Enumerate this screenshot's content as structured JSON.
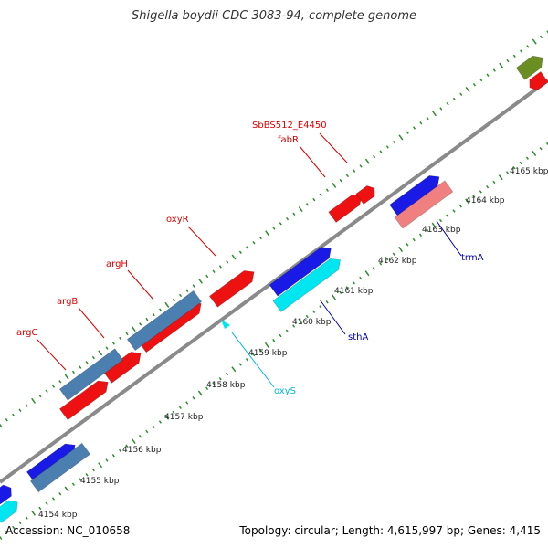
{
  "title": "Shigella boydii CDC 3083-94, complete genome",
  "footer": {
    "accession": "Accession: NC_010658",
    "summary": "Topology: circular; Length: 4,615,997 bp; Genes: 4,415"
  },
  "colors": {
    "backbone": "#8a8a8a",
    "tick": "#2e8b2e",
    "cds_forward": "#1a1ae6",
    "cds_reverse": "#ee1111",
    "gene": "#4a7fb0",
    "trna": "#00e6f0",
    "rrna": "#6b8e23",
    "pseudo": "#f08080"
  },
  "kbp_labels": [
    "4154 kbp",
    "4155 kbp",
    "4156 kbp",
    "4157 kbp",
    "4158 kbp",
    "4159 kbp",
    "4160 kbp",
    "4161 kbp",
    "4162 kbp",
    "4163 kbp",
    "4164 kbp",
    "4165 kbp"
  ],
  "gene_labels": [
    {
      "text": "SbBS512_E4450",
      "color": "#dd0000"
    },
    {
      "text": "fabR",
      "color": "#dd0000"
    },
    {
      "text": "oxyR",
      "color": "#dd0000"
    },
    {
      "text": "argH",
      "color": "#dd0000"
    },
    {
      "text": "argB",
      "color": "#dd0000"
    },
    {
      "text": "argC",
      "color": "#dd0000"
    },
    {
      "text": "trmA",
      "color": "#0000aa"
    },
    {
      "text": "sthA",
      "color": "#0000aa"
    },
    {
      "text": "oxyS",
      "color": "#00b8e0"
    }
  ]
}
